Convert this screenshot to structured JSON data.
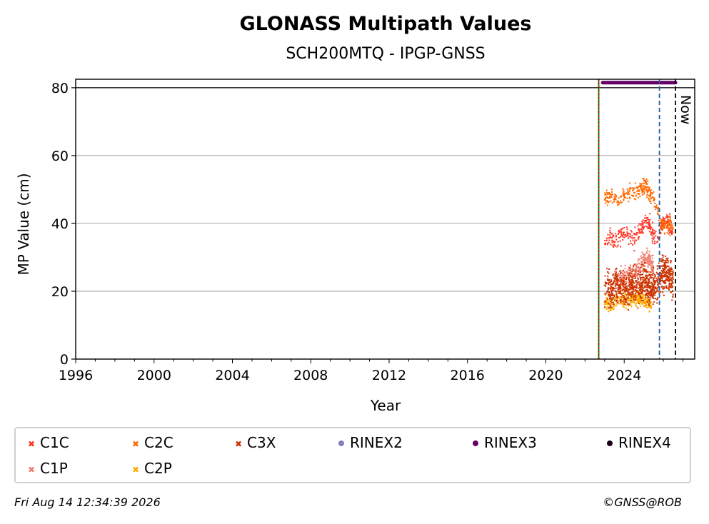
{
  "chart_data": {
    "type": "scatter",
    "title": "GLONASS Multipath Values",
    "subtitle": "SCH200MTQ - IPGP-GNSS",
    "xlabel": "Year",
    "ylabel": "MP Value (cm)",
    "xlim": [
      1996,
      2027.6
    ],
    "ylim": [
      0,
      82.5
    ],
    "xticks": [
      1996,
      2000,
      2004,
      2008,
      2012,
      2016,
      2020,
      2024
    ],
    "yticks": [
      0,
      20,
      40,
      60,
      80
    ],
    "grid": "horizontal",
    "reference_line_y": 80,
    "vertical_lines": [
      {
        "x": 2022.7,
        "color": "#008000",
        "style": "solid"
      },
      {
        "x": 2022.7,
        "color": "#cc0000",
        "style": "dotted"
      },
      {
        "x": 2025.8,
        "color": "#1f5fa8",
        "style": "dashed"
      },
      {
        "x": 2026.62,
        "color": "#000000",
        "style": "dashed",
        "label": "Now"
      }
    ],
    "series": [
      {
        "name": "C1C",
        "color": "#ff3322",
        "marker": "x",
        "x": [
          2023.0,
          2023.3,
          2023.6,
          2023.9,
          2024.2,
          2024.5,
          2024.8,
          2025.0,
          2025.2,
          2025.4,
          2025.6,
          2025.9,
          2026.1,
          2026.3,
          2026.5
        ],
        "y": [
          35,
          36,
          35,
          37,
          36,
          35,
          38,
          40,
          41,
          38,
          35,
          39,
          41,
          40,
          38
        ]
      },
      {
        "name": "C2C",
        "color": "#ff6a00",
        "marker": "x",
        "x": [
          2023.0,
          2023.3,
          2023.6,
          2023.9,
          2024.2,
          2024.5,
          2024.8,
          2025.0,
          2025.2,
          2025.4,
          2025.6,
          2025.9,
          2026.1,
          2026.3,
          2026.5
        ],
        "y": [
          47,
          48,
          47,
          48,
          49,
          49,
          50,
          51,
          50,
          48,
          46,
          40,
          39,
          40,
          38
        ]
      },
      {
        "name": "C3X",
        "color": "#cc3300",
        "marker": "x",
        "x": [
          2023.0,
          2023.3,
          2023.6,
          2023.9,
          2024.2,
          2024.5,
          2024.8,
          2025.0,
          2025.2,
          2025.4,
          2025.6,
          2025.9,
          2026.1,
          2026.3,
          2026.5
        ],
        "y": [
          21,
          20,
          22,
          21,
          20,
          22,
          21,
          23,
          22,
          21,
          22,
          24,
          26,
          25,
          24
        ]
      },
      {
        "name": "C1P",
        "color": "#f08070",
        "marker": "x",
        "x": [
          2023.5,
          2024.0,
          2024.5,
          2024.9,
          2025.2,
          2025.5
        ],
        "y": [
          23,
          24,
          25,
          28,
          30,
          27
        ]
      },
      {
        "name": "C2P",
        "color": "#ffaa00",
        "marker": "x",
        "x": [
          2023.0,
          2023.4,
          2023.8,
          2024.2,
          2024.6,
          2025.0,
          2025.4
        ],
        "y": [
          17,
          16,
          18,
          17,
          18,
          17,
          16
        ]
      },
      {
        "name": "RINEX2",
        "color": "#8080c0",
        "marker": "dot",
        "x": [],
        "y": []
      },
      {
        "name": "RINEX3",
        "color": "#660066",
        "marker": "dot",
        "x_range": [
          2022.9,
          2026.62
        ],
        "y": 81.5
      },
      {
        "name": "RINEX4",
        "color": "#1a001a",
        "marker": "dot",
        "x": [],
        "y": []
      }
    ]
  },
  "legend": {
    "items": [
      {
        "name": "C1C",
        "color": "#ff3322",
        "marker": "x"
      },
      {
        "name": "C2C",
        "color": "#ff6a00",
        "marker": "x"
      },
      {
        "name": "C3X",
        "color": "#cc3300",
        "marker": "x"
      },
      {
        "name": "RINEX2",
        "color": "#8080c0",
        "marker": "dot"
      },
      {
        "name": "RINEX3",
        "color": "#660066",
        "marker": "dot"
      },
      {
        "name": "RINEX4",
        "color": "#1a001a",
        "marker": "dot"
      },
      {
        "name": "C1P",
        "color": "#f08070",
        "marker": "x"
      },
      {
        "name": "C2P",
        "color": "#ffaa00",
        "marker": "x"
      }
    ]
  },
  "footer": {
    "timestamp": "Fri Aug 14 12:34:39 2026",
    "credit": "©GNSS@ROB"
  }
}
